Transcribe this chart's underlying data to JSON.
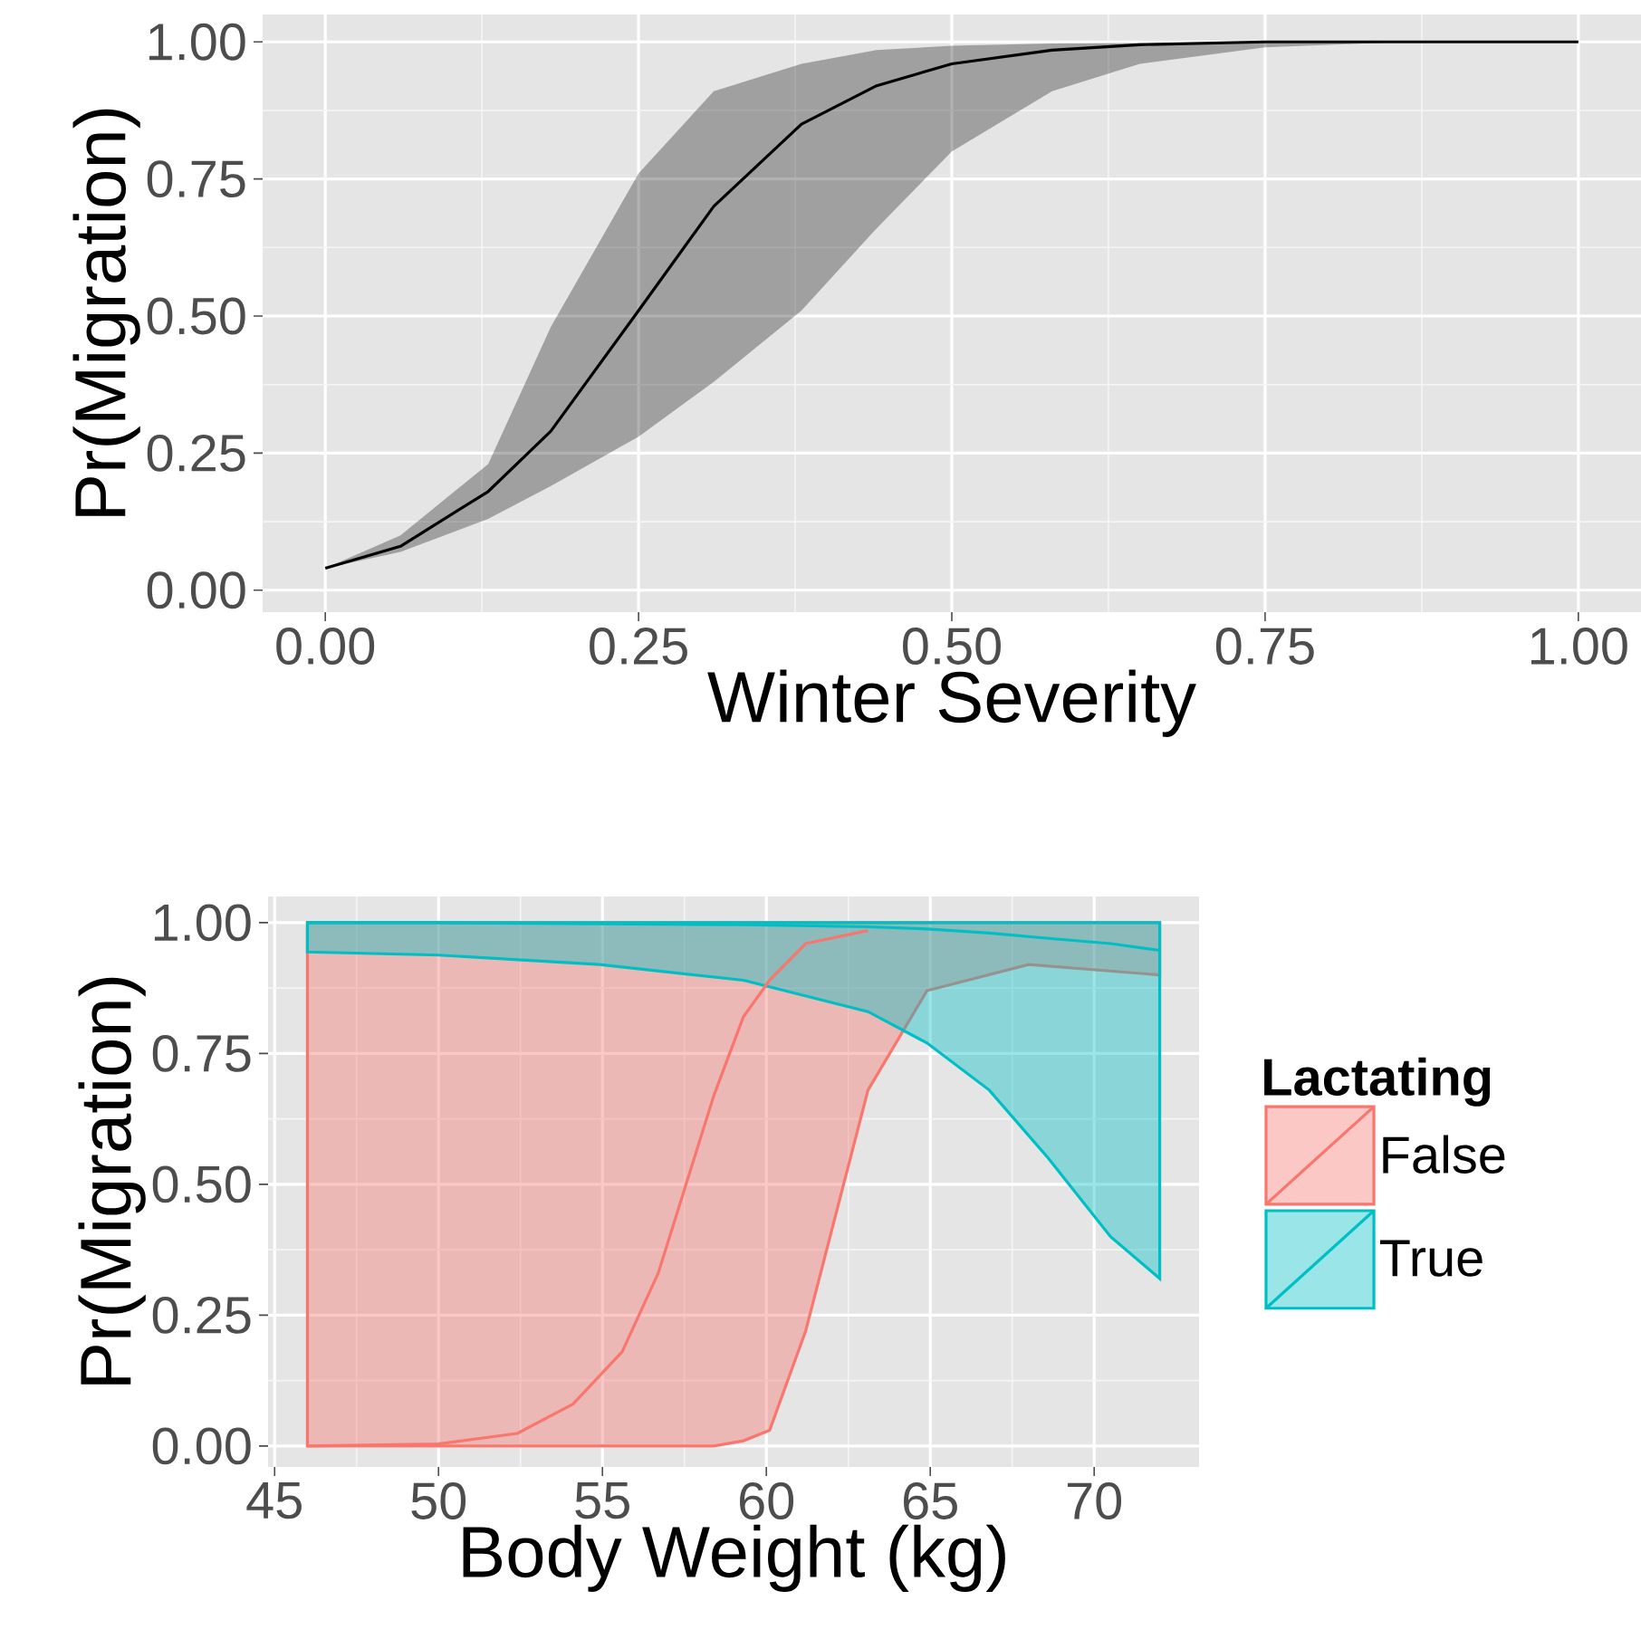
{
  "chart_data": [
    {
      "type": "line",
      "xlabel": "Winter Severity",
      "ylabel": "Pr(Migration)",
      "grid": true,
      "xlim": [
        -0.05,
        1.05
      ],
      "ylim": [
        -0.04,
        1.05
      ],
      "xticks": [
        {
          "value": 0,
          "label": "0.00"
        },
        {
          "value": 0.25,
          "label": "0.25"
        },
        {
          "value": 0.5,
          "label": "0.50"
        },
        {
          "value": 0.75,
          "label": "0.75"
        },
        {
          "value": 1,
          "label": "1.00"
        }
      ],
      "yticks": [
        {
          "value": 0,
          "label": "0.00"
        },
        {
          "value": 0.25,
          "label": "0.25"
        },
        {
          "value": 0.5,
          "label": "0.50"
        },
        {
          "value": 0.75,
          "label": "0.75"
        },
        {
          "value": 1,
          "label": "1.00"
        }
      ],
      "series": [
        {
          "color": "#000000",
          "x": [
            0,
            0.06,
            0.13,
            0.18,
            0.25,
            0.31,
            0.38,
            0.44,
            0.5,
            0.58,
            0.65,
            0.75,
            0.86,
            1
          ],
          "values": [
            0.04,
            0.08,
            0.18,
            0.29,
            0.51,
            0.7,
            0.85,
            0.92,
            0.96,
            0.985,
            0.995,
            1,
            1,
            1
          ],
          "lower": [
            0.04,
            0.07,
            0.13,
            0.19,
            0.28,
            0.38,
            0.51,
            0.66,
            0.8,
            0.91,
            0.96,
            0.99,
            1,
            1
          ],
          "upper": [
            0.04,
            0.1,
            0.23,
            0.48,
            0.76,
            0.91,
            0.96,
            0.985,
            0.993,
            0.997,
            0.998,
            0.999,
            1,
            1
          ]
        }
      ]
    },
    {
      "type": "line",
      "xlabel": "Body Weight (kg)",
      "ylabel": "Pr(Migration)",
      "grid": true,
      "legend": "right",
      "legend_title": "Lactating",
      "xlim": [
        44.8,
        73.2
      ],
      "ylim": [
        -0.04,
        1.05
      ],
      "xticks": [
        45,
        50,
        55,
        60,
        65,
        70
      ],
      "yticks": [
        {
          "value": 0,
          "label": "0.00"
        },
        {
          "value": 0.25,
          "label": "0.25"
        },
        {
          "value": 0.5,
          "label": "0.50"
        },
        {
          "value": 0.75,
          "label": "0.75"
        },
        {
          "value": 1,
          "label": "1.00"
        }
      ],
      "series": [
        {
          "name": "False",
          "color": "#f8766d",
          "x": [
            46,
            50,
            52.4,
            54.1,
            55.6,
            56.7,
            57.5,
            58.4,
            59.3,
            60.1,
            61.2,
            63.1,
            64.9,
            68,
            72
          ],
          "values": [
            0,
            0.004,
            0.024,
            0.08,
            0.18,
            0.33,
            0.49,
            0.67,
            0.82,
            0.89,
            0.96,
            0.985,
            null,
            null,
            null
          ],
          "lower": [
            0,
            0,
            0,
            0,
            0,
            0,
            0,
            0,
            0.01,
            0.03,
            0.22,
            0.68,
            0.87,
            0.92,
            0.9
          ],
          "upper": [
            1,
            1,
            1,
            1,
            1,
            1,
            1,
            1,
            1,
            1,
            1,
            1,
            1,
            1,
            1
          ]
        },
        {
          "name": "True",
          "color": "#00bfc4",
          "x": [
            46,
            50,
            54.9,
            59.3,
            63.1,
            64.9,
            66.8,
            68.6,
            70.5,
            72
          ],
          "values": [
            1,
            1,
            0.998,
            0.996,
            0.992,
            0.988,
            0.98,
            0.97,
            0.96,
            0.947
          ],
          "lower": [
            0.944,
            0.938,
            0.92,
            0.89,
            0.83,
            0.77,
            0.68,
            0.55,
            0.4,
            0.32
          ],
          "upper": [
            1,
            1,
            1,
            1,
            1,
            1,
            1,
            1,
            1,
            1
          ]
        }
      ]
    }
  ]
}
